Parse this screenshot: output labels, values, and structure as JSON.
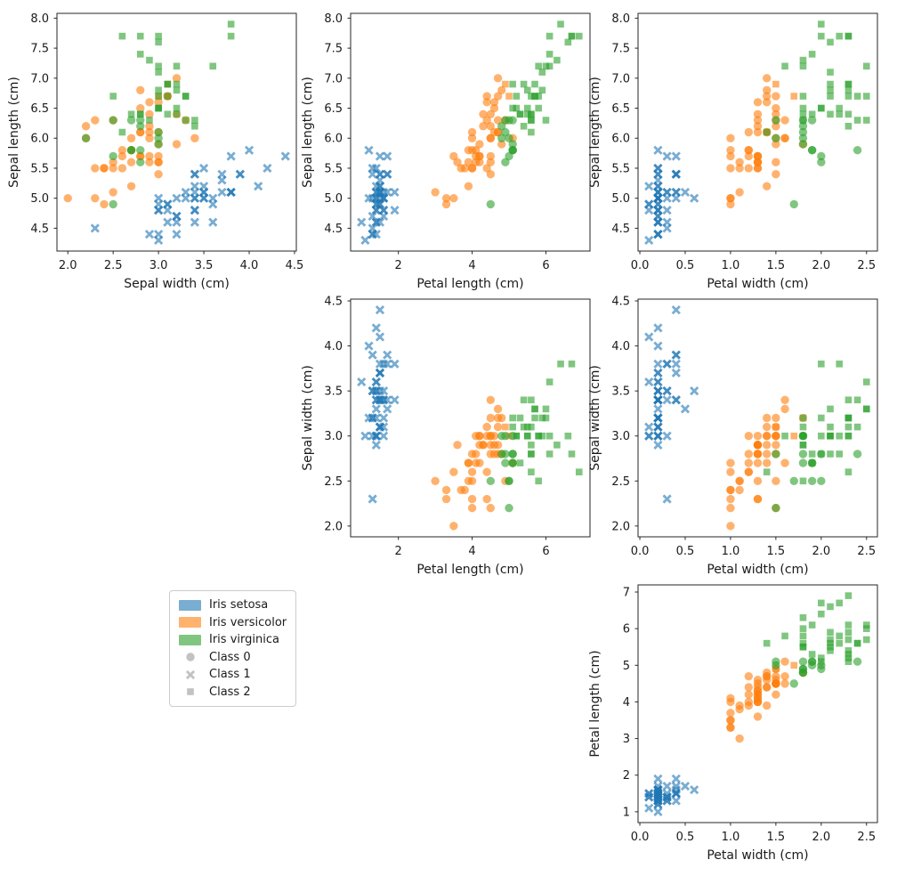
{
  "figure_background": "#ffffff",
  "legend": {
    "items": [
      {
        "label": "Iris setosa",
        "swatch": "patch",
        "color": "#1f77b4"
      },
      {
        "label": "Iris versicolor",
        "swatch": "patch",
        "color": "#ff7f0e"
      },
      {
        "label": "Iris virginica",
        "swatch": "patch",
        "color": "#2ca02c"
      },
      {
        "label": "Class 0",
        "swatch": "circle",
        "color": "#c2c2c2"
      },
      {
        "label": "Class 1",
        "swatch": "x",
        "color": "#c2c2c2"
      },
      {
        "label": "Class 2",
        "swatch": "square",
        "color": "#c2c2c2"
      }
    ]
  },
  "chart_data": {
    "type": "scatter",
    "title": "",
    "dataset": "iris",
    "features": [
      "Sepal length (cm)",
      "Sepal width (cm)",
      "Petal length (cm)",
      "Petal width (cm)"
    ],
    "species_names": [
      "Iris setosa",
      "Iris versicolor",
      "Iris virginica"
    ],
    "species_colors": [
      "#1f77b4",
      "#ff7f0e",
      "#2ca02c"
    ],
    "cluster_names": [
      "Class 0",
      "Class 1",
      "Class 2"
    ],
    "cluster_markers": [
      "circle",
      "x",
      "square"
    ],
    "marker_alpha": 0.6,
    "grid": false,
    "panels": [
      {
        "x_feature": 1,
        "y_feature": 0,
        "xlabel": "Sepal width (cm)",
        "ylabel": "Sepal length (cm)",
        "xlim": [
          1.88,
          4.52
        ],
        "ylim": [
          4.12,
          8.08
        ],
        "xticks": [
          2.0,
          2.5,
          3.0,
          3.5,
          4.0,
          4.5
        ],
        "yticks": [
          4.5,
          5.0,
          5.5,
          6.0,
          6.5,
          7.0,
          7.5,
          8.0
        ],
        "xtick_decimals": 1,
        "ytick_decimals": 1
      },
      {
        "x_feature": 2,
        "y_feature": 0,
        "xlabel": "Petal length (cm)",
        "ylabel": "Sepal length (cm)",
        "xlim": [
          0.705,
          7.195
        ],
        "ylim": [
          4.12,
          8.08
        ],
        "xticks": [
          2,
          4,
          6
        ],
        "yticks": [
          4.5,
          5.0,
          5.5,
          6.0,
          6.5,
          7.0,
          7.5,
          8.0
        ],
        "xtick_decimals": 0,
        "ytick_decimals": 1
      },
      {
        "x_feature": 3,
        "y_feature": 0,
        "xlabel": "Petal width (cm)",
        "ylabel": "Sepal length (cm)",
        "xlim": [
          -0.02,
          2.62
        ],
        "ylim": [
          4.12,
          8.08
        ],
        "xticks": [
          0.0,
          0.5,
          1.0,
          1.5,
          2.0,
          2.5
        ],
        "yticks": [
          4.5,
          5.0,
          5.5,
          6.0,
          6.5,
          7.0,
          7.5,
          8.0
        ],
        "xtick_decimals": 1,
        "ytick_decimals": 1
      },
      {
        "x_feature": 2,
        "y_feature": 1,
        "xlabel": "Petal length (cm)",
        "ylabel": "Sepal width (cm)",
        "xlim": [
          0.705,
          7.195
        ],
        "ylim": [
          1.88,
          4.52
        ],
        "xticks": [
          2,
          4,
          6
        ],
        "yticks": [
          2.0,
          2.5,
          3.0,
          3.5,
          4.0,
          4.5
        ],
        "xtick_decimals": 0,
        "ytick_decimals": 1
      },
      {
        "x_feature": 3,
        "y_feature": 1,
        "xlabel": "Petal width (cm)",
        "ylabel": "Sepal width (cm)",
        "xlim": [
          -0.02,
          2.62
        ],
        "ylim": [
          1.88,
          4.52
        ],
        "xticks": [
          0.0,
          0.5,
          1.0,
          1.5,
          2.0,
          2.5
        ],
        "yticks": [
          2.0,
          2.5,
          3.0,
          3.5,
          4.0,
          4.5
        ],
        "xtick_decimals": 1,
        "ytick_decimals": 1
      },
      {
        "x_feature": 3,
        "y_feature": 2,
        "xlabel": "Petal width (cm)",
        "ylabel": "Petal length (cm)",
        "xlim": [
          -0.02,
          2.62
        ],
        "ylim": [
          0.705,
          7.195
        ],
        "xticks": [
          0.0,
          0.5,
          1.0,
          1.5,
          2.0,
          2.5
        ],
        "yticks": [
          1,
          2,
          3,
          4,
          5,
          6,
          7
        ],
        "xtick_decimals": 1,
        "ytick_decimals": 0
      }
    ],
    "points": [
      [
        5.1,
        3.5,
        1.4,
        0.2,
        0,
        1
      ],
      [
        4.9,
        3.0,
        1.4,
        0.2,
        0,
        1
      ],
      [
        4.7,
        3.2,
        1.3,
        0.2,
        0,
        1
      ],
      [
        4.6,
        3.1,
        1.5,
        0.2,
        0,
        1
      ],
      [
        5.0,
        3.6,
        1.4,
        0.2,
        0,
        1
      ],
      [
        5.4,
        3.9,
        1.7,
        0.4,
        0,
        1
      ],
      [
        4.6,
        3.4,
        1.4,
        0.3,
        0,
        1
      ],
      [
        5.0,
        3.4,
        1.5,
        0.2,
        0,
        1
      ],
      [
        4.4,
        2.9,
        1.4,
        0.2,
        0,
        1
      ],
      [
        4.9,
        3.1,
        1.5,
        0.1,
        0,
        1
      ],
      [
        5.4,
        3.7,
        1.5,
        0.2,
        0,
        1
      ],
      [
        4.8,
        3.4,
        1.6,
        0.2,
        0,
        1
      ],
      [
        4.8,
        3.0,
        1.4,
        0.1,
        0,
        1
      ],
      [
        4.3,
        3.0,
        1.1,
        0.1,
        0,
        1
      ],
      [
        5.8,
        4.0,
        1.2,
        0.2,
        0,
        1
      ],
      [
        5.7,
        4.4,
        1.5,
        0.4,
        0,
        1
      ],
      [
        5.4,
        3.9,
        1.3,
        0.4,
        0,
        1
      ],
      [
        5.1,
        3.5,
        1.4,
        0.3,
        0,
        1
      ],
      [
        5.7,
        3.8,
        1.7,
        0.3,
        0,
        1
      ],
      [
        5.1,
        3.8,
        1.5,
        0.3,
        0,
        1
      ],
      [
        5.4,
        3.4,
        1.7,
        0.2,
        0,
        1
      ],
      [
        5.1,
        3.7,
        1.5,
        0.4,
        0,
        1
      ],
      [
        4.6,
        3.6,
        1.0,
        0.2,
        0,
        1
      ],
      [
        5.1,
        3.3,
        1.7,
        0.5,
        0,
        1
      ],
      [
        4.8,
        3.4,
        1.9,
        0.2,
        0,
        1
      ],
      [
        5.0,
        3.0,
        1.6,
        0.2,
        0,
        1
      ],
      [
        5.0,
        3.4,
        1.6,
        0.4,
        0,
        1
      ],
      [
        5.2,
        3.5,
        1.5,
        0.2,
        0,
        1
      ],
      [
        5.2,
        3.4,
        1.4,
        0.2,
        0,
        1
      ],
      [
        4.7,
        3.2,
        1.6,
        0.2,
        0,
        1
      ],
      [
        4.8,
        3.1,
        1.6,
        0.2,
        0,
        1
      ],
      [
        5.4,
        3.4,
        1.5,
        0.4,
        0,
        1
      ],
      [
        5.2,
        4.1,
        1.5,
        0.1,
        0,
        1
      ],
      [
        5.5,
        4.2,
        1.4,
        0.2,
        0,
        1
      ],
      [
        4.9,
        3.1,
        1.5,
        0.2,
        0,
        1
      ],
      [
        5.0,
        3.2,
        1.2,
        0.2,
        0,
        1
      ],
      [
        5.5,
        3.5,
        1.3,
        0.2,
        0,
        1
      ],
      [
        4.9,
        3.6,
        1.4,
        0.1,
        0,
        1
      ],
      [
        4.4,
        3.0,
        1.3,
        0.2,
        0,
        1
      ],
      [
        5.1,
        3.4,
        1.5,
        0.2,
        0,
        1
      ],
      [
        5.0,
        3.5,
        1.3,
        0.3,
        0,
        1
      ],
      [
        4.5,
        2.3,
        1.3,
        0.3,
        0,
        1
      ],
      [
        4.4,
        3.2,
        1.3,
        0.2,
        0,
        1
      ],
      [
        5.0,
        3.5,
        1.6,
        0.6,
        0,
        1
      ],
      [
        5.1,
        3.8,
        1.9,
        0.4,
        0,
        1
      ],
      [
        4.8,
        3.0,
        1.4,
        0.3,
        0,
        1
      ],
      [
        5.1,
        3.8,
        1.6,
        0.2,
        0,
        1
      ],
      [
        4.6,
        3.2,
        1.4,
        0.2,
        0,
        1
      ],
      [
        5.3,
        3.7,
        1.5,
        0.2,
        0,
        1
      ],
      [
        5.0,
        3.3,
        1.4,
        0.2,
        0,
        1
      ],
      [
        7.0,
        3.2,
        4.7,
        1.4,
        1,
        0
      ],
      [
        6.4,
        3.2,
        4.5,
        1.5,
        1,
        0
      ],
      [
        6.9,
        3.1,
        4.9,
        1.5,
        1,
        2
      ],
      [
        5.5,
        2.3,
        4.0,
        1.3,
        1,
        0
      ],
      [
        6.5,
        2.8,
        4.6,
        1.5,
        1,
        0
      ],
      [
        5.7,
        2.8,
        4.5,
        1.3,
        1,
        0
      ],
      [
        6.3,
        3.3,
        4.7,
        1.6,
        1,
        0
      ],
      [
        4.9,
        2.4,
        3.3,
        1.0,
        1,
        0
      ],
      [
        6.6,
        2.9,
        4.6,
        1.3,
        1,
        0
      ],
      [
        5.2,
        2.7,
        3.9,
        1.4,
        1,
        0
      ],
      [
        5.0,
        2.0,
        3.5,
        1.0,
        1,
        0
      ],
      [
        5.9,
        3.0,
        4.2,
        1.5,
        1,
        0
      ],
      [
        6.0,
        2.2,
        4.0,
        1.0,
        1,
        0
      ],
      [
        6.1,
        2.9,
        4.7,
        1.4,
        1,
        0
      ],
      [
        5.6,
        2.9,
        3.6,
        1.3,
        1,
        0
      ],
      [
        6.7,
        3.1,
        4.4,
        1.4,
        1,
        0
      ],
      [
        5.6,
        3.0,
        4.5,
        1.5,
        1,
        0
      ],
      [
        5.8,
        2.7,
        4.1,
        1.0,
        1,
        0
      ],
      [
        6.2,
        2.2,
        4.5,
        1.5,
        1,
        0
      ],
      [
        5.6,
        2.5,
        3.9,
        1.1,
        1,
        0
      ],
      [
        5.9,
        3.2,
        4.8,
        1.8,
        1,
        0
      ],
      [
        6.1,
        2.8,
        4.0,
        1.3,
        1,
        0
      ],
      [
        6.3,
        2.5,
        4.9,
        1.5,
        1,
        0
      ],
      [
        6.1,
        2.8,
        4.7,
        1.2,
        1,
        0
      ],
      [
        6.4,
        2.9,
        4.3,
        1.3,
        1,
        0
      ],
      [
        6.6,
        3.0,
        4.4,
        1.4,
        1,
        0
      ],
      [
        6.8,
        2.8,
        4.8,
        1.4,
        1,
        0
      ],
      [
        6.7,
        3.0,
        5.0,
        1.7,
        1,
        2
      ],
      [
        6.0,
        2.9,
        4.5,
        1.5,
        1,
        0
      ],
      [
        5.7,
        2.6,
        3.5,
        1.0,
        1,
        0
      ],
      [
        5.5,
        2.4,
        3.8,
        1.1,
        1,
        0
      ],
      [
        5.5,
        2.4,
        3.7,
        1.0,
        1,
        0
      ],
      [
        5.8,
        2.7,
        3.9,
        1.2,
        1,
        0
      ],
      [
        6.0,
        2.7,
        5.1,
        1.6,
        1,
        0
      ],
      [
        5.4,
        3.0,
        4.5,
        1.5,
        1,
        0
      ],
      [
        6.0,
        3.4,
        4.5,
        1.6,
        1,
        0
      ],
      [
        6.7,
        3.1,
        4.7,
        1.5,
        1,
        0
      ],
      [
        6.3,
        2.3,
        4.4,
        1.3,
        1,
        0
      ],
      [
        5.6,
        3.0,
        4.1,
        1.3,
        1,
        0
      ],
      [
        5.5,
        2.5,
        4.0,
        1.3,
        1,
        0
      ],
      [
        5.5,
        2.6,
        4.4,
        1.2,
        1,
        0
      ],
      [
        6.1,
        3.0,
        4.6,
        1.4,
        1,
        0
      ],
      [
        5.8,
        2.6,
        4.0,
        1.2,
        1,
        0
      ],
      [
        5.0,
        2.3,
        3.3,
        1.0,
        1,
        0
      ],
      [
        5.6,
        2.7,
        4.2,
        1.3,
        1,
        0
      ],
      [
        5.7,
        3.0,
        4.2,
        1.2,
        1,
        0
      ],
      [
        5.7,
        2.9,
        4.2,
        1.3,
        1,
        0
      ],
      [
        6.2,
        2.9,
        4.3,
        1.3,
        1,
        0
      ],
      [
        5.1,
        2.5,
        3.0,
        1.1,
        1,
        0
      ],
      [
        5.7,
        2.8,
        4.1,
        1.3,
        1,
        0
      ],
      [
        6.3,
        3.3,
        6.0,
        2.5,
        2,
        2
      ],
      [
        5.8,
        2.7,
        5.1,
        1.9,
        2,
        0
      ],
      [
        7.1,
        3.0,
        5.9,
        2.1,
        2,
        2
      ],
      [
        6.3,
        2.9,
        5.6,
        1.8,
        2,
        2
      ],
      [
        6.5,
        3.0,
        5.8,
        2.2,
        2,
        2
      ],
      [
        7.6,
        3.0,
        6.6,
        2.1,
        2,
        2
      ],
      [
        4.9,
        2.5,
        4.5,
        1.7,
        2,
        0
      ],
      [
        7.3,
        2.9,
        6.3,
        1.8,
        2,
        2
      ],
      [
        6.7,
        2.5,
        5.8,
        1.8,
        2,
        2
      ],
      [
        7.2,
        3.6,
        6.1,
        2.5,
        2,
        2
      ],
      [
        6.5,
        3.2,
        5.1,
        2.0,
        2,
        2
      ],
      [
        6.4,
        2.7,
        5.3,
        1.9,
        2,
        2
      ],
      [
        6.8,
        3.0,
        5.5,
        2.1,
        2,
        2
      ],
      [
        5.7,
        2.5,
        5.0,
        2.0,
        2,
        0
      ],
      [
        5.8,
        2.8,
        5.1,
        2.4,
        2,
        0
      ],
      [
        6.4,
        3.2,
        5.3,
        2.3,
        2,
        2
      ],
      [
        6.5,
        3.0,
        5.5,
        1.8,
        2,
        2
      ],
      [
        7.7,
        3.8,
        6.7,
        2.2,
        2,
        2
      ],
      [
        7.7,
        2.6,
        6.9,
        2.3,
        2,
        2
      ],
      [
        6.0,
        2.2,
        5.0,
        1.5,
        2,
        0
      ],
      [
        6.9,
        3.2,
        5.7,
        2.3,
        2,
        2
      ],
      [
        5.6,
        2.8,
        4.9,
        2.0,
        2,
        0
      ],
      [
        7.7,
        2.8,
        6.7,
        2.0,
        2,
        2
      ],
      [
        6.3,
        2.7,
        4.9,
        1.8,
        2,
        0
      ],
      [
        6.7,
        3.3,
        5.7,
        2.1,
        2,
        2
      ],
      [
        7.2,
        3.2,
        6.0,
        1.8,
        2,
        2
      ],
      [
        6.2,
        2.8,
        4.8,
        1.8,
        2,
        0
      ],
      [
        6.1,
        3.0,
        4.9,
        1.8,
        2,
        0
      ],
      [
        6.4,
        2.8,
        5.6,
        2.1,
        2,
        2
      ],
      [
        7.2,
        3.0,
        5.8,
        1.6,
        2,
        2
      ],
      [
        7.4,
        2.8,
        6.1,
        1.9,
        2,
        2
      ],
      [
        7.9,
        3.8,
        6.4,
        2.0,
        2,
        2
      ],
      [
        6.4,
        2.8,
        5.6,
        2.2,
        2,
        2
      ],
      [
        6.3,
        2.8,
        5.1,
        1.5,
        2,
        0
      ],
      [
        6.1,
        2.6,
        5.6,
        1.4,
        2,
        2
      ],
      [
        7.7,
        3.0,
        6.1,
        2.3,
        2,
        2
      ],
      [
        6.3,
        3.4,
        5.6,
        2.4,
        2,
        2
      ],
      [
        6.4,
        3.1,
        5.5,
        1.8,
        2,
        2
      ],
      [
        6.0,
        3.0,
        4.8,
        1.8,
        2,
        0
      ],
      [
        6.9,
        3.1,
        5.4,
        2.1,
        2,
        2
      ],
      [
        6.7,
        3.1,
        5.6,
        2.4,
        2,
        2
      ],
      [
        6.9,
        3.1,
        5.1,
        2.3,
        2,
        2
      ],
      [
        5.8,
        2.7,
        5.1,
        1.9,
        2,
        0
      ],
      [
        6.8,
        3.2,
        5.9,
        2.3,
        2,
        2
      ],
      [
        6.7,
        3.3,
        5.7,
        2.5,
        2,
        2
      ],
      [
        6.7,
        3.0,
        5.2,
        2.3,
        2,
        2
      ],
      [
        6.3,
        2.5,
        5.0,
        1.9,
        2,
        0
      ],
      [
        6.5,
        3.0,
        5.2,
        2.0,
        2,
        2
      ],
      [
        6.2,
        3.4,
        5.4,
        2.3,
        2,
        2
      ],
      [
        5.9,
        3.0,
        5.1,
        1.8,
        2,
        0
      ]
    ]
  }
}
